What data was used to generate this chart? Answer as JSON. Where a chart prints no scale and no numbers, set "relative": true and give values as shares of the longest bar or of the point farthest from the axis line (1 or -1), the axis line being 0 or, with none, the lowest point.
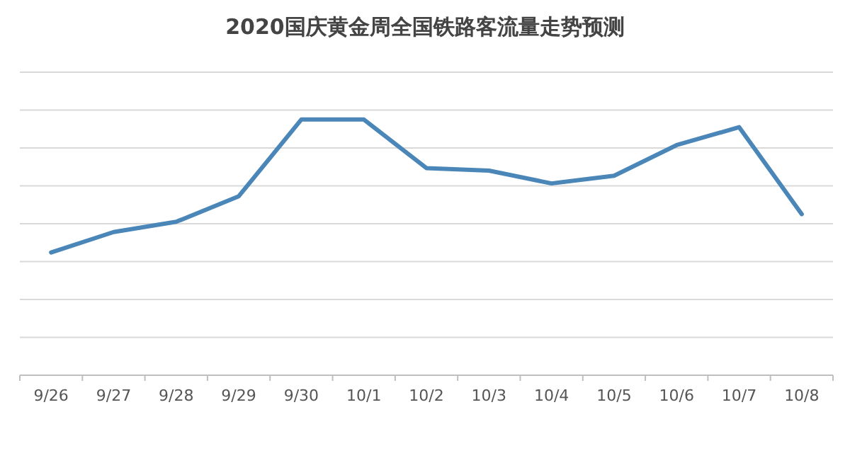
{
  "chart_data": {
    "type": "line",
    "title": "2020国庆黄金周全国铁路客流量走势预测",
    "categories": [
      "9/26",
      "9/27",
      "9/28",
      "9/29",
      "9/30",
      "10/1",
      "10/2",
      "10/3",
      "10/4",
      "10/5",
      "10/6",
      "10/7",
      "10/8"
    ],
    "relative": true,
    "grid": "y",
    "marker": "none",
    "line_style": "solid",
    "series": [
      {
        "color": "#4a86b8",
        "values": [
          0.48,
          0.56,
          0.6,
          0.7,
          1,
          1,
          0.81,
          0.8,
          0.75,
          0.78,
          0.9,
          0.97,
          0.63
        ]
      }
    ]
  }
}
